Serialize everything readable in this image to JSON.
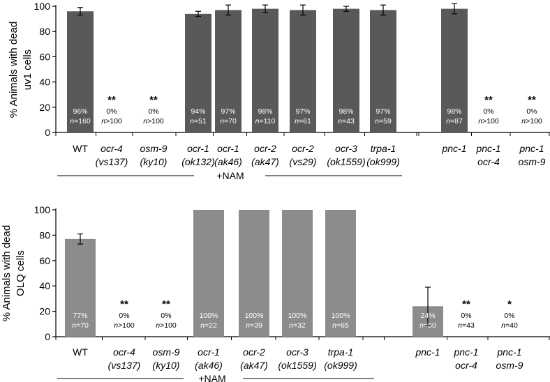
{
  "colors": {
    "panel_a_bar": "#595959",
    "panel_b_bar": "#8c8c8c",
    "axis": "#000000",
    "label_on_bar": "#ffffff",
    "label_off_bar": "#000000"
  },
  "chart_data": [
    {
      "type": "bar",
      "ylabel": [
        "% Animals with dead",
        "uv1 cells"
      ],
      "ylim": [
        0,
        100
      ],
      "yticks": [
        "0",
        "20",
        "40",
        "60",
        "80",
        "100"
      ],
      "nam_label": "+NAM",
      "categories": [
        [
          "WT"
        ],
        [
          "ocr-4",
          "(vs137)"
        ],
        [
          "osm-9",
          "(ky10)"
        ],
        [
          "ocr-1",
          "(ok132)"
        ],
        [
          "ocr-1",
          "(ak46)"
        ],
        [
          "ocr-2",
          "(ak47)"
        ],
        [
          "ocr-2",
          "(vs29)"
        ],
        [
          "ocr-3",
          "(ok1559)"
        ],
        [
          "trpa-1",
          "(ok999)"
        ],
        [
          "pnc-1"
        ],
        [
          "pnc-1",
          "ocr-4"
        ],
        [
          "pnc-1",
          "osm-9"
        ]
      ],
      "values": [
        96,
        0,
        0,
        94,
        97,
        98,
        97,
        98,
        97,
        98,
        0,
        0
      ],
      "errors": [
        3,
        0,
        0,
        2,
        4,
        3,
        4,
        2,
        4,
        4,
        0,
        0
      ],
      "pct_labels": [
        "96%",
        "0%",
        "0%",
        "94%",
        "97%",
        "98%",
        "97%",
        "98%",
        "97%",
        "98%",
        "0%",
        "0%"
      ],
      "n_labels": [
        "=160",
        ">100",
        ">100",
        "=51",
        "=70",
        "=110",
        "=61",
        "=43",
        "=59",
        "=87",
        ">100",
        ">100"
      ],
      "significance": [
        "",
        "**",
        "**",
        "",
        "",
        "",
        "",
        "",
        "",
        "",
        "**",
        "**"
      ]
    },
    {
      "type": "bar",
      "ylabel": [
        "% Animals with dead",
        "OLQ cells"
      ],
      "ylim": [
        0,
        100
      ],
      "yticks": [
        "0",
        "20",
        "40",
        "60",
        "80",
        "100"
      ],
      "nam_label": "+NAM",
      "categories": [
        [
          "WT"
        ],
        [
          "ocr-4",
          "(vs137)"
        ],
        [
          "osm-9",
          "(ky10)"
        ],
        [
          "ocr-1",
          "(ak46)"
        ],
        [
          "ocr-2",
          "(ak47)"
        ],
        [
          "ocr-3",
          "(ok1559)"
        ],
        [
          "trpa-1",
          "(ok999)"
        ],
        [
          "pnc-1"
        ],
        [
          "pnc-1",
          "ocr-4"
        ],
        [
          "pnc-1",
          "osm-9"
        ]
      ],
      "values": [
        77,
        0,
        0,
        100,
        100,
        100,
        100,
        24,
        0,
        0
      ],
      "errors": [
        4,
        0,
        0,
        0,
        0,
        0,
        0,
        15,
        0,
        0
      ],
      "pct_labels": [
        "77%",
        "0%",
        "0%",
        "100%",
        "100%",
        "100%",
        "100%",
        "24%",
        "0%",
        "0%"
      ],
      "n_labels": [
        "=70",
        ">100",
        ">100",
        "=22",
        "=39",
        "=32",
        "=65",
        "=50",
        "=43",
        "=40"
      ],
      "significance": [
        "",
        "**",
        "**",
        "",
        "",
        "",
        "",
        "",
        "**",
        "*"
      ]
    }
  ]
}
